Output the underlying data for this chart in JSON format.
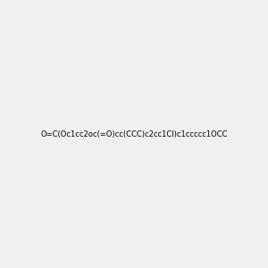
{
  "smiles": "O=C(Oc1cc2oc(=O)cc(CCC)c2cc1Cl)c1ccccc1OCC",
  "image_size": 300,
  "background_color": "#f0f0f0",
  "bond_color": "#2d7d2d",
  "atom_colors": {
    "O": "#ff0000",
    "Cl": "#00cc00",
    "C": "#2d7d2d",
    "H": "#2d7d2d"
  }
}
